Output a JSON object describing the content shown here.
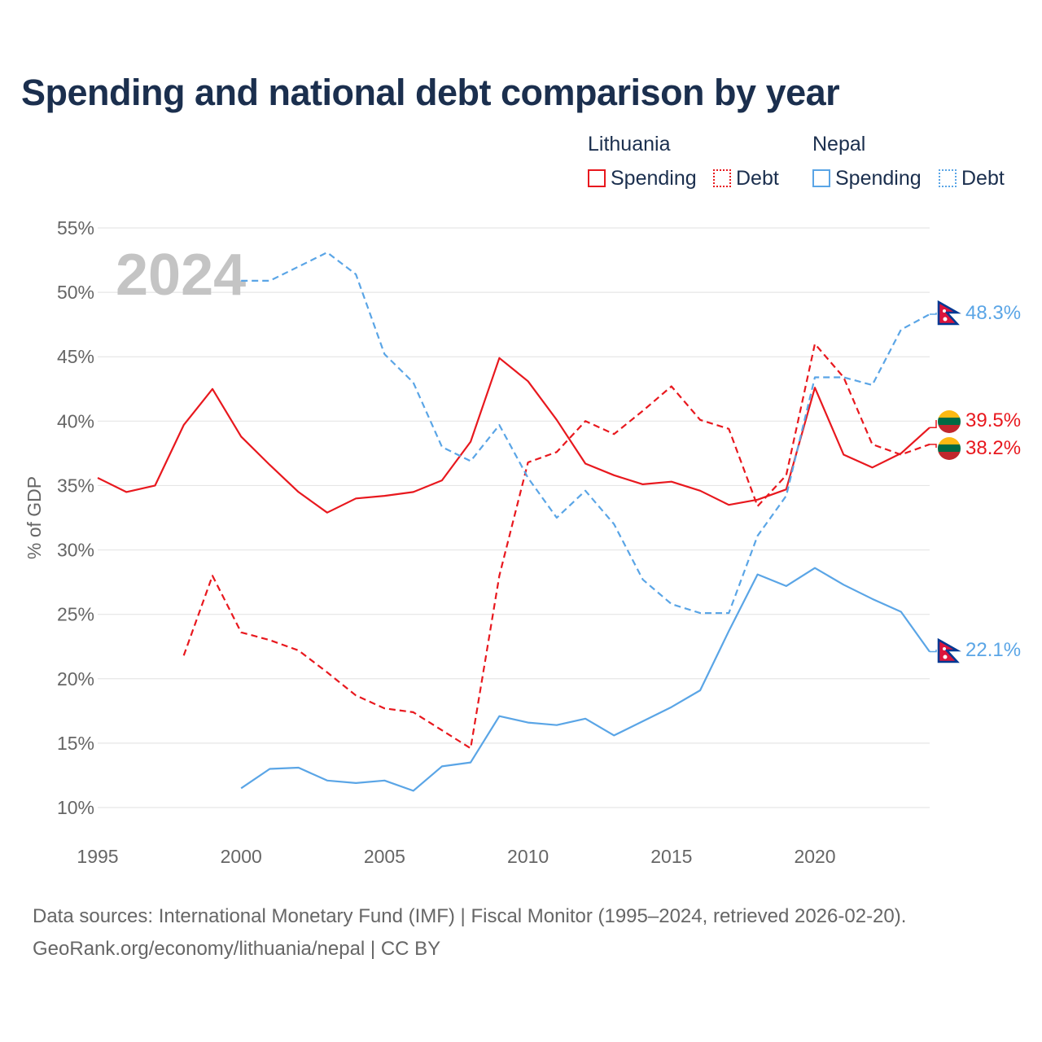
{
  "title": "Spending and national debt comparison by year",
  "year_watermark": "2024",
  "legend": {
    "groups": [
      {
        "country": "Lithuania",
        "items": [
          {
            "label": "Spending",
            "style": "solid"
          },
          {
            "label": "Debt",
            "style": "dotted"
          }
        ],
        "color": "#e8181e"
      },
      {
        "country": "Nepal",
        "items": [
          {
            "label": "Spending",
            "style": "solid"
          },
          {
            "label": "Debt",
            "style": "dotted"
          }
        ],
        "color": "#5aa5e6"
      }
    ]
  },
  "footer": {
    "line1": "Data sources: International Monetary Fund (IMF) | Fiscal Monitor (1995–2024, retrieved 2026-02-20).",
    "line2": "GeoRank.org/economy/lithuania/nepal | CC BY"
  },
  "chart_data": {
    "type": "line",
    "title": "Spending and national debt comparison by year",
    "xlabel": "",
    "ylabel": "% of GDP",
    "xlim": [
      1995,
      2024
    ],
    "ylim": [
      10,
      55
    ],
    "x_ticks": [
      1995,
      2000,
      2005,
      2010,
      2015,
      2020
    ],
    "y_ticks": [
      10,
      15,
      20,
      25,
      30,
      35,
      40,
      45,
      50,
      55
    ],
    "y_tick_labels": [
      "10%",
      "15%",
      "20%",
      "25%",
      "30%",
      "35%",
      "40%",
      "45%",
      "50%",
      "55%"
    ],
    "grid": true,
    "series": [
      {
        "name": "Lithuania Spending",
        "country": "Lithuania",
        "metric": "Spending",
        "style": "solid",
        "color": "#e8181e",
        "x": [
          1995,
          1996,
          1997,
          1998,
          1999,
          2000,
          2001,
          2002,
          2003,
          2004,
          2005,
          2006,
          2007,
          2008,
          2009,
          2010,
          2011,
          2012,
          2013,
          2014,
          2015,
          2016,
          2017,
          2018,
          2019,
          2020,
          2021,
          2022,
          2023,
          2024
        ],
        "values": [
          35.6,
          34.5,
          35.0,
          39.7,
          42.5,
          38.8,
          36.6,
          34.5,
          32.9,
          34.0,
          34.2,
          34.5,
          35.4,
          38.4,
          44.9,
          43.1,
          40.1,
          36.7,
          35.8,
          35.1,
          35.3,
          34.6,
          33.5,
          33.9,
          34.7,
          42.6,
          37.4,
          36.4,
          37.5,
          39.5
        ],
        "end_label": "39.5%"
      },
      {
        "name": "Lithuania Debt",
        "country": "Lithuania",
        "metric": "Debt",
        "style": "dashed",
        "color": "#e8181e",
        "x": [
          1998,
          1999,
          2000,
          2001,
          2002,
          2003,
          2004,
          2005,
          2006,
          2007,
          2008,
          2009,
          2010,
          2011,
          2012,
          2013,
          2014,
          2015,
          2016,
          2017,
          2018,
          2019,
          2020,
          2021,
          2022,
          2023,
          2024
        ],
        "values": [
          21.8,
          28.0,
          23.6,
          23.0,
          22.2,
          20.5,
          18.7,
          17.7,
          17.4,
          16.0,
          14.6,
          28.0,
          36.8,
          37.6,
          40.0,
          39.0,
          40.8,
          42.7,
          40.1,
          39.4,
          33.4,
          35.8,
          46.0,
          43.4,
          38.2,
          37.4,
          38.2
        ],
        "end_label": "38.2%"
      },
      {
        "name": "Nepal Spending",
        "country": "Nepal",
        "metric": "Spending",
        "style": "solid",
        "color": "#5aa5e6",
        "x": [
          2000,
          2001,
          2002,
          2003,
          2004,
          2005,
          2006,
          2007,
          2008,
          2009,
          2010,
          2011,
          2012,
          2013,
          2014,
          2015,
          2016,
          2017,
          2018,
          2019,
          2020,
          2021,
          2022,
          2023,
          2024
        ],
        "values": [
          11.5,
          13.0,
          13.1,
          12.1,
          11.9,
          12.1,
          11.3,
          13.2,
          13.5,
          17.1,
          16.6,
          16.4,
          16.9,
          15.6,
          16.7,
          17.8,
          19.1,
          23.7,
          28.1,
          27.2,
          28.6,
          27.3,
          26.2,
          25.2,
          22.1
        ],
        "end_label": "22.1%"
      },
      {
        "name": "Nepal Debt",
        "country": "Nepal",
        "metric": "Debt",
        "style": "dashed",
        "color": "#5aa5e6",
        "x": [
          2000,
          2001,
          2002,
          2003,
          2004,
          2005,
          2006,
          2007,
          2008,
          2009,
          2010,
          2011,
          2012,
          2013,
          2014,
          2015,
          2016,
          2017,
          2018,
          2019,
          2020,
          2021,
          2022,
          2023,
          2024
        ],
        "values": [
          50.9,
          50.9,
          52.0,
          53.1,
          51.4,
          45.2,
          43.0,
          38.0,
          36.9,
          39.7,
          35.6,
          32.5,
          34.6,
          32.0,
          27.7,
          25.8,
          25.1,
          25.1,
          31.1,
          34.2,
          43.4,
          43.4,
          42.8,
          47.1,
          48.3
        ],
        "end_label": "48.3%"
      }
    ]
  }
}
